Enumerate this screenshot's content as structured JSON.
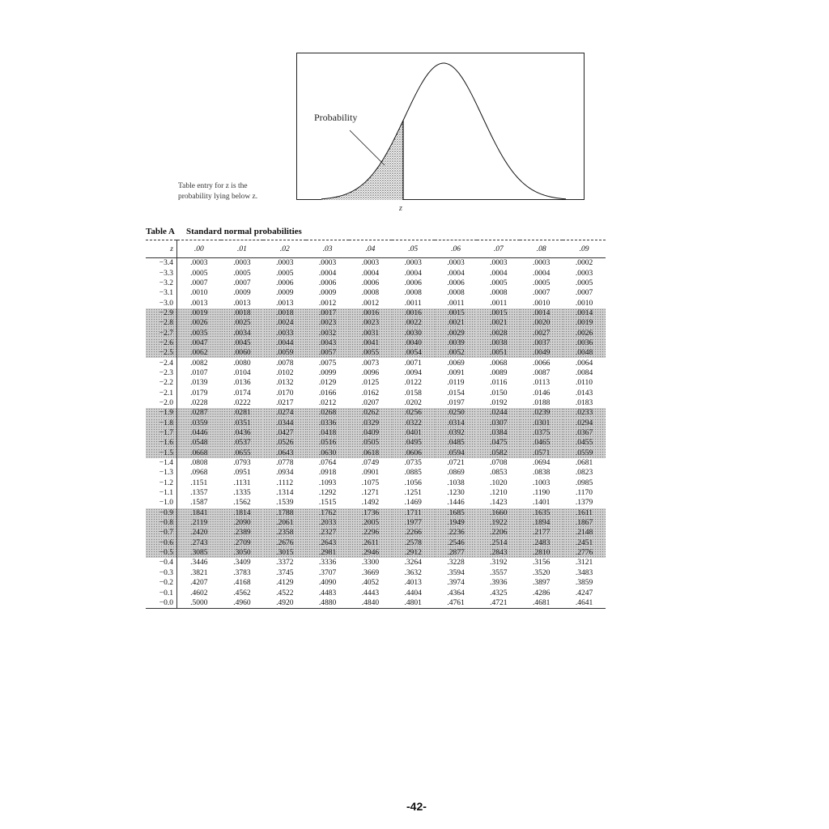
{
  "figure": {
    "probability_label": "Probability",
    "caption_line1": "Table entry for z is the",
    "caption_line2": "probability lying below z.",
    "z_label": "z"
  },
  "table": {
    "title_label": "Table A",
    "title_text": "Standard normal probabilities",
    "headers": [
      "z",
      ".00",
      ".01",
      ".02",
      ".03",
      ".04",
      ".05",
      ".06",
      ".07",
      ".08",
      ".09"
    ],
    "rows": [
      {
        "z": "−3.4",
        "v": [
          ".0003",
          ".0003",
          ".0003",
          ".0003",
          ".0003",
          ".0003",
          ".0003",
          ".0003",
          ".0003",
          ".0002"
        ]
      },
      {
        "z": "−3.3",
        "v": [
          ".0005",
          ".0005",
          ".0005",
          ".0004",
          ".0004",
          ".0004",
          ".0004",
          ".0004",
          ".0004",
          ".0003"
        ]
      },
      {
        "z": "−3.2",
        "v": [
          ".0007",
          ".0007",
          ".0006",
          ".0006",
          ".0006",
          ".0006",
          ".0006",
          ".0005",
          ".0005",
          ".0005"
        ]
      },
      {
        "z": "−3.1",
        "v": [
          ".0010",
          ".0009",
          ".0009",
          ".0009",
          ".0008",
          ".0008",
          ".0008",
          ".0008",
          ".0007",
          ".0007"
        ]
      },
      {
        "z": "−3.0",
        "v": [
          ".0013",
          ".0013",
          ".0013",
          ".0012",
          ".0012",
          ".0011",
          ".0011",
          ".0011",
          ".0010",
          ".0010"
        ]
      },
      {
        "z": "−2.9",
        "v": [
          ".0019",
          ".0018",
          ".0018",
          ".0017",
          ".0016",
          ".0016",
          ".0015",
          ".0015",
          ".0014",
          ".0014"
        ]
      },
      {
        "z": "−2.8",
        "v": [
          ".0026",
          ".0025",
          ".0024",
          ".0023",
          ".0023",
          ".0022",
          ".0021",
          ".0021",
          ".0020",
          ".0019"
        ]
      },
      {
        "z": "−2.7",
        "v": [
          ".0035",
          ".0034",
          ".0033",
          ".0032",
          ".0031",
          ".0030",
          ".0029",
          ".0028",
          ".0027",
          ".0026"
        ]
      },
      {
        "z": "−2.6",
        "v": [
          ".0047",
          ".0045",
          ".0044",
          ".0043",
          ".0041",
          ".0040",
          ".0039",
          ".0038",
          ".0037",
          ".0036"
        ]
      },
      {
        "z": "−2.5",
        "v": [
          ".0062",
          ".0060",
          ".0059",
          ".0057",
          ".0055",
          ".0054",
          ".0052",
          ".0051",
          ".0049",
          ".0048"
        ]
      },
      {
        "z": "−2.4",
        "v": [
          ".0082",
          ".0080",
          ".0078",
          ".0075",
          ".0073",
          ".0071",
          ".0069",
          ".0068",
          ".0066",
          ".0064"
        ]
      },
      {
        "z": "−2.3",
        "v": [
          ".0107",
          ".0104",
          ".0102",
          ".0099",
          ".0096",
          ".0094",
          ".0091",
          ".0089",
          ".0087",
          ".0084"
        ]
      },
      {
        "z": "−2.2",
        "v": [
          ".0139",
          ".0136",
          ".0132",
          ".0129",
          ".0125",
          ".0122",
          ".0119",
          ".0116",
          ".0113",
          ".0110"
        ]
      },
      {
        "z": "−2.1",
        "v": [
          ".0179",
          ".0174",
          ".0170",
          ".0166",
          ".0162",
          ".0158",
          ".0154",
          ".0150",
          ".0146",
          ".0143"
        ]
      },
      {
        "z": "−2.0",
        "v": [
          ".0228",
          ".0222",
          ".0217",
          ".0212",
          ".0207",
          ".0202",
          ".0197",
          ".0192",
          ".0188",
          ".0183"
        ]
      },
      {
        "z": "−1.9",
        "v": [
          ".0287",
          ".0281",
          ".0274",
          ".0268",
          ".0262",
          ".0256",
          ".0250",
          ".0244",
          ".0239",
          ".0233"
        ]
      },
      {
        "z": "−1.8",
        "v": [
          ".0359",
          ".0351",
          ".0344",
          ".0336",
          ".0329",
          ".0322",
          ".0314",
          ".0307",
          ".0301",
          ".0294"
        ]
      },
      {
        "z": "−1.7",
        "v": [
          ".0446",
          ".0436",
          ".0427",
          ".0418",
          ".0409",
          ".0401",
          ".0392",
          ".0384",
          ".0375",
          ".0367"
        ]
      },
      {
        "z": "−1.6",
        "v": [
          ".0548",
          ".0537",
          ".0526",
          ".0516",
          ".0505",
          ".0495",
          ".0485",
          ".0475",
          ".0465",
          ".0455"
        ]
      },
      {
        "z": "−1.5",
        "v": [
          ".0668",
          ".0655",
          ".0643",
          ".0630",
          ".0618",
          ".0606",
          ".0594",
          ".0582",
          ".0571",
          ".0559"
        ]
      },
      {
        "z": "−1.4",
        "v": [
          ".0808",
          ".0793",
          ".0778",
          ".0764",
          ".0749",
          ".0735",
          ".0721",
          ".0708",
          ".0694",
          ".0681"
        ]
      },
      {
        "z": "−1.3",
        "v": [
          ".0968",
          ".0951",
          ".0934",
          ".0918",
          ".0901",
          ".0885",
          ".0869",
          ".0853",
          ".0838",
          ".0823"
        ]
      },
      {
        "z": "−1.2",
        "v": [
          ".1151",
          ".1131",
          ".1112",
          ".1093",
          ".1075",
          ".1056",
          ".1038",
          ".1020",
          ".1003",
          ".0985"
        ]
      },
      {
        "z": "−1.1",
        "v": [
          ".1357",
          ".1335",
          ".1314",
          ".1292",
          ".1271",
          ".1251",
          ".1230",
          ".1210",
          ".1190",
          ".1170"
        ]
      },
      {
        "z": "−1.0",
        "v": [
          ".1587",
          ".1562",
          ".1539",
          ".1515",
          ".1492",
          ".1469",
          ".1446",
          ".1423",
          ".1401",
          ".1379"
        ]
      },
      {
        "z": "−0.9",
        "v": [
          ".1841",
          ".1814",
          ".1788",
          ".1762",
          ".1736",
          ".1711",
          ".1685",
          ".1660",
          ".1635",
          ".1611"
        ]
      },
      {
        "z": "−0.8",
        "v": [
          ".2119",
          ".2090",
          ".2061",
          ".2033",
          ".2005",
          ".1977",
          ".1949",
          ".1922",
          ".1894",
          ".1867"
        ]
      },
      {
        "z": "−0.7",
        "v": [
          ".2420",
          ".2389",
          ".2358",
          ".2327",
          ".2296",
          ".2266",
          ".2236",
          ".2206",
          ".2177",
          ".2148"
        ]
      },
      {
        "z": "−0.6",
        "v": [
          ".2743",
          ".2709",
          ".2676",
          ".2643",
          ".2611",
          ".2578",
          ".2546",
          ".2514",
          ".2483",
          ".2451"
        ]
      },
      {
        "z": "−0.5",
        "v": [
          ".3085",
          ".3050",
          ".3015",
          ".2981",
          ".2946",
          ".2912",
          ".2877",
          ".2843",
          ".2810",
          ".2776"
        ]
      },
      {
        "z": "−0.4",
        "v": [
          ".3446",
          ".3409",
          ".3372",
          ".3336",
          ".3300",
          ".3264",
          ".3228",
          ".3192",
          ".3156",
          ".3121"
        ]
      },
      {
        "z": "−0.3",
        "v": [
          ".3821",
          ".3783",
          ".3745",
          ".3707",
          ".3669",
          ".3632",
          ".3594",
          ".3557",
          ".3520",
          ".3483"
        ]
      },
      {
        "z": "−0.2",
        "v": [
          ".4207",
          ".4168",
          ".4129",
          ".4090",
          ".4052",
          ".4013",
          ".3974",
          ".3936",
          ".3897",
          ".3859"
        ]
      },
      {
        "z": "−0.1",
        "v": [
          ".4602",
          ".4562",
          ".4522",
          ".4483",
          ".4443",
          ".4404",
          ".4364",
          ".4325",
          ".4286",
          ".4247"
        ]
      },
      {
        "z": "−0.0",
        "v": [
          ".5000",
          ".4960",
          ".4920",
          ".4880",
          ".4840",
          ".4801",
          ".4761",
          ".4721",
          ".4681",
          ".4641"
        ]
      }
    ],
    "shaded_groups": [
      "−2.9 to −2.5",
      "−1.9 to −1.5",
      "−0.9 to −0.5"
    ]
  },
  "page_number": "-42-"
}
